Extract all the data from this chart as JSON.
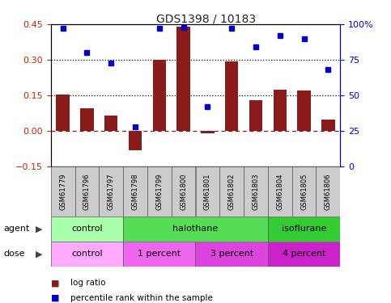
{
  "title": "GDS1398 / 10183",
  "samples": [
    "GSM61779",
    "GSM61796",
    "GSM61797",
    "GSM61798",
    "GSM61799",
    "GSM61800",
    "GSM61801",
    "GSM61802",
    "GSM61803",
    "GSM61804",
    "GSM61805",
    "GSM61806"
  ],
  "log_ratio": [
    0.155,
    0.095,
    0.065,
    -0.08,
    0.3,
    0.44,
    -0.01,
    0.295,
    0.13,
    0.175,
    0.17,
    0.05
  ],
  "percentile_rank": [
    97,
    80,
    73,
    28,
    97,
    98,
    42,
    97,
    84,
    92,
    90,
    68
  ],
  "ylim_left": [
    -0.15,
    0.45
  ],
  "ylim_right": [
    0,
    100
  ],
  "yticks_left": [
    -0.15,
    0,
    0.15,
    0.3,
    0.45
  ],
  "yticks_right": [
    0,
    25,
    50,
    75,
    100
  ],
  "hlines_dotted": [
    0.15,
    0.3
  ],
  "hline_dashed": 0.0,
  "bar_color": "#8B1A1A",
  "dot_color": "#0000CD",
  "agent_groups": [
    {
      "label": "control",
      "start": 0,
      "end": 3,
      "color": "#AAFFAA"
    },
    {
      "label": "halothane",
      "start": 3,
      "end": 9,
      "color": "#55DD55"
    },
    {
      "label": "isoflurane",
      "start": 9,
      "end": 12,
      "color": "#33CC33"
    }
  ],
  "dose_groups": [
    {
      "label": "control",
      "start": 0,
      "end": 3,
      "color": "#FFAAFF"
    },
    {
      "label": "1 percent",
      "start": 3,
      "end": 6,
      "color": "#EE66EE"
    },
    {
      "label": "3 percent",
      "start": 6,
      "end": 9,
      "color": "#DD44DD"
    },
    {
      "label": "4 percent",
      "start": 9,
      "end": 12,
      "color": "#CC22CC"
    }
  ],
  "legend_items": [
    {
      "label": "log ratio",
      "color": "#8B1A1A"
    },
    {
      "label": "percentile rank within the sample",
      "color": "#0000CD"
    }
  ],
  "agent_label": "agent",
  "dose_label": "dose",
  "left_axis_color": "#CC2200",
  "right_axis_color": "#0000CC",
  "bg_color": "#FFFFFF"
}
